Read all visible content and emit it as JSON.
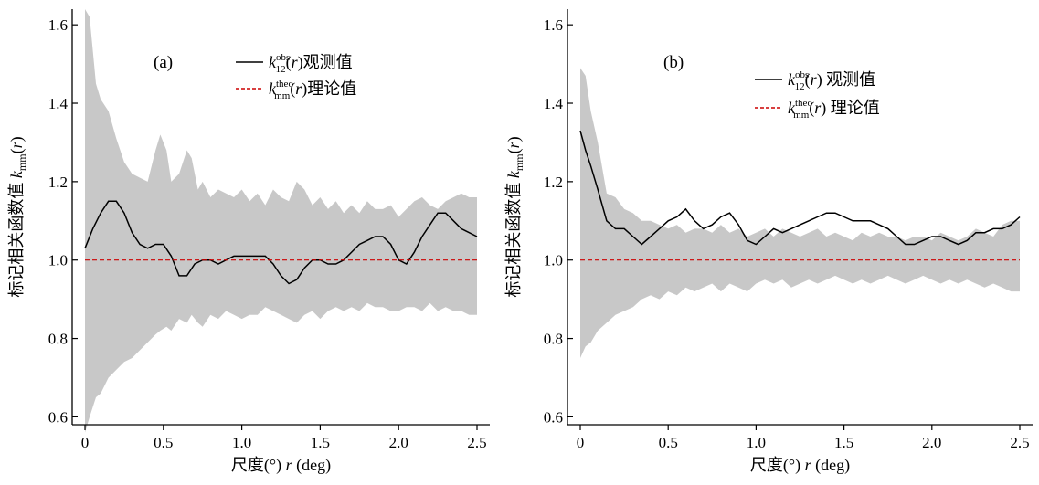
{
  "chart_data": [
    {
      "type": "line",
      "panel_label": "(a)",
      "xlabel": "尺度(°) r (deg)",
      "ylabel": "标记相关函数值 kmm(r)",
      "xlim": [
        0,
        2.5
      ],
      "ylim": [
        0.58,
        1.64
      ],
      "xticks": [
        0,
        0.5,
        1.0,
        1.5,
        2.0,
        2.5
      ],
      "xtick_labels": [
        "0",
        "0.5",
        "1.0",
        "1.5",
        "2.0",
        "2.5"
      ],
      "yticks": [
        0.6,
        0.8,
        1.0,
        1.2,
        1.4,
        1.6
      ],
      "ytick_labels": [
        "0.6",
        "0.8",
        "1.0",
        "1.2",
        "1.4",
        "1.6"
      ],
      "legend": [
        {
          "series": "observed",
          "base": "k",
          "sub": "12",
          "sup": "obs",
          "rest": "(r)观测值"
        },
        {
          "series": "theoretical",
          "base": "k",
          "sub": "mm",
          "sup": "theo",
          "rest": "(r)理论值"
        }
      ],
      "series": [
        {
          "name": "observed",
          "color": "#000000",
          "style": "solid",
          "x": [
            0,
            0.05,
            0.1,
            0.15,
            0.2,
            0.25,
            0.3,
            0.35,
            0.4,
            0.45,
            0.5,
            0.55,
            0.6,
            0.65,
            0.7,
            0.75,
            0.8,
            0.85,
            0.9,
            0.95,
            1.0,
            1.05,
            1.1,
            1.15,
            1.2,
            1.25,
            1.3,
            1.35,
            1.4,
            1.45,
            1.5,
            1.55,
            1.6,
            1.65,
            1.7,
            1.75,
            1.8,
            1.85,
            1.9,
            1.95,
            2.0,
            2.05,
            2.1,
            2.15,
            2.2,
            2.25,
            2.3,
            2.35,
            2.4,
            2.45,
            2.5
          ],
          "y": [
            1.03,
            1.08,
            1.12,
            1.15,
            1.15,
            1.12,
            1.07,
            1.04,
            1.03,
            1.04,
            1.04,
            1.01,
            0.96,
            0.96,
            0.99,
            1.0,
            1.0,
            0.99,
            1.0,
            1.01,
            1.01,
            1.01,
            1.01,
            1.01,
            0.99,
            0.96,
            0.94,
            0.95,
            0.98,
            1.0,
            1.0,
            0.99,
            0.99,
            1.0,
            1.02,
            1.04,
            1.05,
            1.06,
            1.06,
            1.04,
            1.0,
            0.99,
            1.02,
            1.06,
            1.09,
            1.12,
            1.12,
            1.1,
            1.08,
            1.07,
            1.06
          ]
        },
        {
          "name": "theoretical",
          "color": "#cc0000",
          "style": "dashed",
          "x": [
            0,
            2.5
          ],
          "y": [
            1.0,
            1.0
          ]
        }
      ],
      "envelope": {
        "color": "#c8c8c8",
        "x": [
          0,
          0.03,
          0.07,
          0.1,
          0.15,
          0.2,
          0.25,
          0.3,
          0.35,
          0.4,
          0.45,
          0.48,
          0.52,
          0.55,
          0.6,
          0.65,
          0.68,
          0.72,
          0.75,
          0.8,
          0.85,
          0.9,
          0.95,
          1.0,
          1.05,
          1.1,
          1.15,
          1.2,
          1.25,
          1.3,
          1.35,
          1.4,
          1.45,
          1.5,
          1.55,
          1.6,
          1.65,
          1.7,
          1.75,
          1.8,
          1.85,
          1.9,
          1.95,
          2.0,
          2.05,
          2.1,
          2.15,
          2.2,
          2.25,
          2.3,
          2.35,
          2.4,
          2.45,
          2.5
        ],
        "upper": [
          1.64,
          1.62,
          1.45,
          1.41,
          1.38,
          1.31,
          1.25,
          1.22,
          1.21,
          1.2,
          1.28,
          1.32,
          1.28,
          1.2,
          1.22,
          1.28,
          1.26,
          1.18,
          1.2,
          1.16,
          1.18,
          1.17,
          1.16,
          1.18,
          1.15,
          1.17,
          1.14,
          1.18,
          1.16,
          1.15,
          1.2,
          1.18,
          1.14,
          1.16,
          1.13,
          1.15,
          1.12,
          1.14,
          1.12,
          1.15,
          1.13,
          1.13,
          1.14,
          1.11,
          1.13,
          1.15,
          1.16,
          1.14,
          1.13,
          1.15,
          1.16,
          1.17,
          1.16,
          1.16
        ],
        "lower": [
          0.56,
          0.6,
          0.65,
          0.66,
          0.7,
          0.72,
          0.74,
          0.75,
          0.77,
          0.79,
          0.81,
          0.82,
          0.83,
          0.82,
          0.85,
          0.84,
          0.86,
          0.84,
          0.83,
          0.86,
          0.85,
          0.87,
          0.86,
          0.85,
          0.86,
          0.86,
          0.88,
          0.87,
          0.86,
          0.85,
          0.84,
          0.86,
          0.87,
          0.85,
          0.87,
          0.88,
          0.87,
          0.88,
          0.87,
          0.89,
          0.88,
          0.88,
          0.87,
          0.87,
          0.88,
          0.88,
          0.87,
          0.89,
          0.87,
          0.88,
          0.87,
          0.87,
          0.86,
          0.86
        ]
      }
    },
    {
      "type": "line",
      "panel_label": "(b)",
      "xlabel": "尺度(°) r (deg)",
      "ylabel": "标记相关函数值 kmm(r)",
      "xlim": [
        0,
        2.5
      ],
      "ylim": [
        0.58,
        1.64
      ],
      "xticks": [
        0,
        0.5,
        1.0,
        1.5,
        2.0,
        2.5
      ],
      "xtick_labels": [
        "0",
        "0.5",
        "1.0",
        "1.5",
        "2.0",
        "2.5"
      ],
      "yticks": [
        0.6,
        0.8,
        1.0,
        1.2,
        1.4,
        1.6
      ],
      "ytick_labels": [
        "0.6",
        "0.8",
        "1.0",
        "1.2",
        "1.4",
        "1.6"
      ],
      "legend": [
        {
          "series": "observed",
          "base": "k",
          "sub": "12",
          "sup": "obs",
          "rest": "(r) 观测值"
        },
        {
          "series": "theoretical",
          "base": "k",
          "sub": "mm",
          "sup": "theo",
          "rest": "(r) 理论值"
        }
      ],
      "series": [
        {
          "name": "observed",
          "color": "#000000",
          "style": "solid",
          "x": [
            0,
            0.03,
            0.06,
            0.1,
            0.15,
            0.2,
            0.25,
            0.3,
            0.35,
            0.4,
            0.45,
            0.5,
            0.55,
            0.6,
            0.65,
            0.7,
            0.75,
            0.8,
            0.85,
            0.9,
            0.95,
            1.0,
            1.05,
            1.1,
            1.15,
            1.2,
            1.25,
            1.3,
            1.35,
            1.4,
            1.45,
            1.5,
            1.55,
            1.6,
            1.65,
            1.7,
            1.75,
            1.8,
            1.85,
            1.9,
            1.95,
            2.0,
            2.05,
            2.1,
            2.15,
            2.2,
            2.25,
            2.3,
            2.35,
            2.4,
            2.45,
            2.5
          ],
          "y": [
            1.33,
            1.28,
            1.24,
            1.18,
            1.1,
            1.08,
            1.08,
            1.06,
            1.04,
            1.06,
            1.08,
            1.1,
            1.11,
            1.13,
            1.1,
            1.08,
            1.09,
            1.11,
            1.12,
            1.09,
            1.05,
            1.04,
            1.06,
            1.08,
            1.07,
            1.08,
            1.09,
            1.1,
            1.11,
            1.12,
            1.12,
            1.11,
            1.1,
            1.1,
            1.1,
            1.09,
            1.08,
            1.06,
            1.04,
            1.04,
            1.05,
            1.06,
            1.06,
            1.05,
            1.04,
            1.05,
            1.07,
            1.07,
            1.08,
            1.08,
            1.09,
            1.11
          ]
        },
        {
          "name": "theoretical",
          "color": "#cc0000",
          "style": "dashed",
          "x": [
            0,
            2.5
          ],
          "y": [
            1.0,
            1.0
          ]
        }
      ],
      "envelope": {
        "color": "#c8c8c8",
        "x": [
          0,
          0.03,
          0.06,
          0.1,
          0.15,
          0.2,
          0.25,
          0.3,
          0.35,
          0.4,
          0.45,
          0.5,
          0.55,
          0.6,
          0.65,
          0.7,
          0.75,
          0.8,
          0.85,
          0.9,
          0.95,
          1.0,
          1.05,
          1.1,
          1.15,
          1.2,
          1.25,
          1.3,
          1.35,
          1.4,
          1.45,
          1.5,
          1.55,
          1.6,
          1.65,
          1.7,
          1.75,
          1.8,
          1.85,
          1.9,
          1.95,
          2.0,
          2.05,
          2.1,
          2.15,
          2.2,
          2.25,
          2.3,
          2.35,
          2.4,
          2.45,
          2.5
        ],
        "upper": [
          1.49,
          1.47,
          1.38,
          1.3,
          1.17,
          1.16,
          1.13,
          1.12,
          1.1,
          1.1,
          1.09,
          1.08,
          1.09,
          1.07,
          1.08,
          1.08,
          1.07,
          1.09,
          1.07,
          1.08,
          1.06,
          1.07,
          1.08,
          1.06,
          1.08,
          1.07,
          1.06,
          1.07,
          1.08,
          1.06,
          1.07,
          1.06,
          1.05,
          1.07,
          1.06,
          1.07,
          1.06,
          1.06,
          1.05,
          1.06,
          1.06,
          1.05,
          1.07,
          1.06,
          1.05,
          1.06,
          1.08,
          1.07,
          1.06,
          1.09,
          1.1,
          1.1
        ],
        "lower": [
          0.75,
          0.78,
          0.79,
          0.82,
          0.84,
          0.86,
          0.87,
          0.88,
          0.9,
          0.91,
          0.9,
          0.92,
          0.91,
          0.93,
          0.92,
          0.93,
          0.94,
          0.92,
          0.94,
          0.93,
          0.92,
          0.94,
          0.95,
          0.94,
          0.95,
          0.93,
          0.94,
          0.95,
          0.94,
          0.95,
          0.96,
          0.95,
          0.94,
          0.95,
          0.94,
          0.95,
          0.96,
          0.95,
          0.94,
          0.95,
          0.96,
          0.95,
          0.94,
          0.95,
          0.94,
          0.95,
          0.94,
          0.93,
          0.94,
          0.93,
          0.92,
          0.92
        ]
      }
    }
  ]
}
